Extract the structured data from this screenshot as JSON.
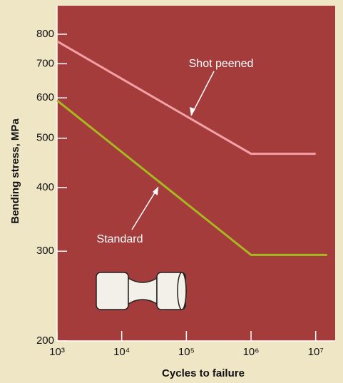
{
  "chart_data": {
    "type": "line",
    "x_label": "Cycles to failure",
    "y_label": "Bending stress, MPa",
    "xscale": "log",
    "yscale": "log",
    "xlim": [
      1000,
      20000000
    ],
    "ylim": [
      200,
      910
    ],
    "xticks": [
      {
        "value": 1000,
        "label": "10³"
      },
      {
        "value": 10000,
        "label": "10⁴"
      },
      {
        "value": 100000,
        "label": "10⁵"
      },
      {
        "value": 1000000,
        "label": "10⁶"
      },
      {
        "value": 10000000,
        "label": "10⁷"
      }
    ],
    "yticks": [
      200,
      300,
      400,
      500,
      600,
      700,
      800
    ],
    "grid": false,
    "series": [
      {
        "name": "Shot peened",
        "color": "#f4a0a8",
        "x": [
          1000,
          1000000,
          10000000
        ],
        "values": [
          775,
          466,
          466
        ]
      },
      {
        "name": "Standard",
        "color": "#a8b820",
        "x": [
          1000,
          1000000,
          15000000
        ],
        "values": [
          593,
          295,
          295
        ]
      }
    ]
  }
}
